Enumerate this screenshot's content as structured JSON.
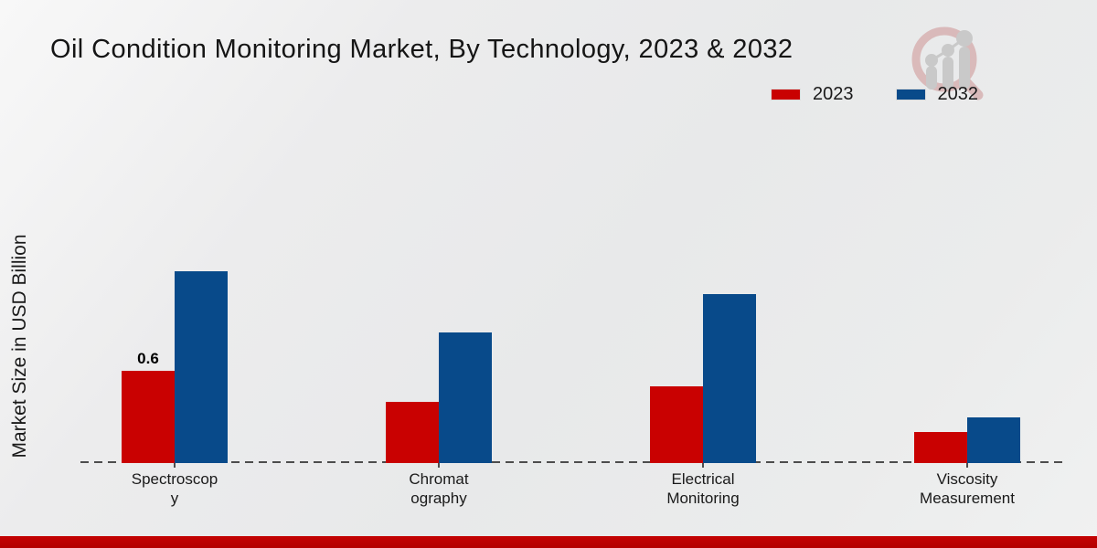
{
  "chart_data": {
    "type": "bar",
    "title": "Oil Condition Monitoring Market, By Technology, 2023 & 2032",
    "xlabel": "",
    "ylabel": "Market Size in USD Billion",
    "ylim": [
      0,
      1.5
    ],
    "grid": false,
    "legend_position": "top-right",
    "categories": [
      "Spectroscopy",
      "Chromatography",
      "Electrical Monitoring",
      "Viscosity Measurement"
    ],
    "category_display_lines": [
      [
        "Spectroscop",
        "y"
      ],
      [
        "Chromat",
        "ography"
      ],
      [
        "Electrical",
        "Monitoring"
      ],
      [
        "Viscosity",
        "Measurement"
      ]
    ],
    "series": [
      {
        "name": "2023",
        "color": "#c90101",
        "values": [
          0.6,
          0.4,
          0.5,
          0.2
        ],
        "data_labels": [
          "0.6",
          "",
          "",
          ""
        ]
      },
      {
        "name": "2032",
        "color": "#084a8a",
        "values": [
          1.25,
          0.85,
          1.1,
          0.3
        ],
        "data_labels": [
          "",
          "",
          "",
          ""
        ]
      }
    ]
  },
  "legend": {
    "items": [
      {
        "label": "2023",
        "color": "#c90101"
      },
      {
        "label": "2032",
        "color": "#084a8a"
      }
    ]
  },
  "branding": {
    "logo_icon": "magnifier-bar-chart-logo",
    "footer_bar_color": "#b80000"
  },
  "colors": {
    "series_2023": "#c90101",
    "series_2032": "#084a8a",
    "axis_line": "#4d4d4d",
    "text": "#1a1a1a",
    "background": "#e9eaeb"
  }
}
